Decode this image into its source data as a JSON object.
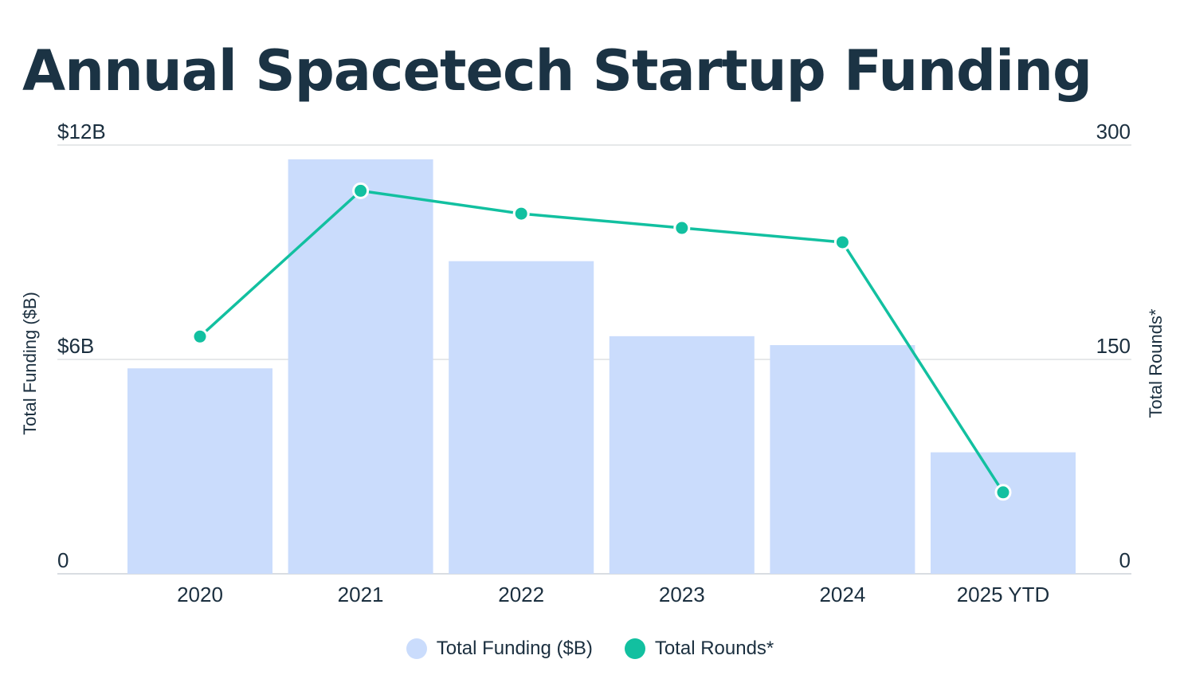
{
  "chart_data": {
    "type": "bar",
    "title": "Annual Spacetech Startup Funding",
    "categories": [
      "2020",
      "2021",
      "2022",
      "2023",
      "2024",
      "2025 YTD"
    ],
    "y_left": {
      "label": "Total Funding ($B)",
      "range": [
        0,
        12
      ],
      "ticks": [
        {
          "value": 0,
          "label": "0"
        },
        {
          "value": 6,
          "label": "$6B"
        },
        {
          "value": 12,
          "label": "$12B"
        }
      ]
    },
    "y_right": {
      "label": "Total Rounds*",
      "range": [
        0,
        300
      ],
      "ticks": [
        {
          "value": 0,
          "label": "0"
        },
        {
          "value": 150,
          "label": "150"
        },
        {
          "value": 300,
          "label": "300"
        }
      ]
    },
    "series": [
      {
        "name": "Total Funding ($B)",
        "type": "bar",
        "axis": "left",
        "color": "#cadcfc",
        "values": [
          5.75,
          11.6,
          8.75,
          6.65,
          6.4,
          3.4
        ]
      },
      {
        "name": "Total Rounds*",
        "type": "line",
        "axis": "right",
        "color": "#12c0a0",
        "values": [
          166,
          268,
          252,
          242,
          232,
          57
        ]
      }
    ],
    "grid": true,
    "legend_position": "bottom-center"
  }
}
